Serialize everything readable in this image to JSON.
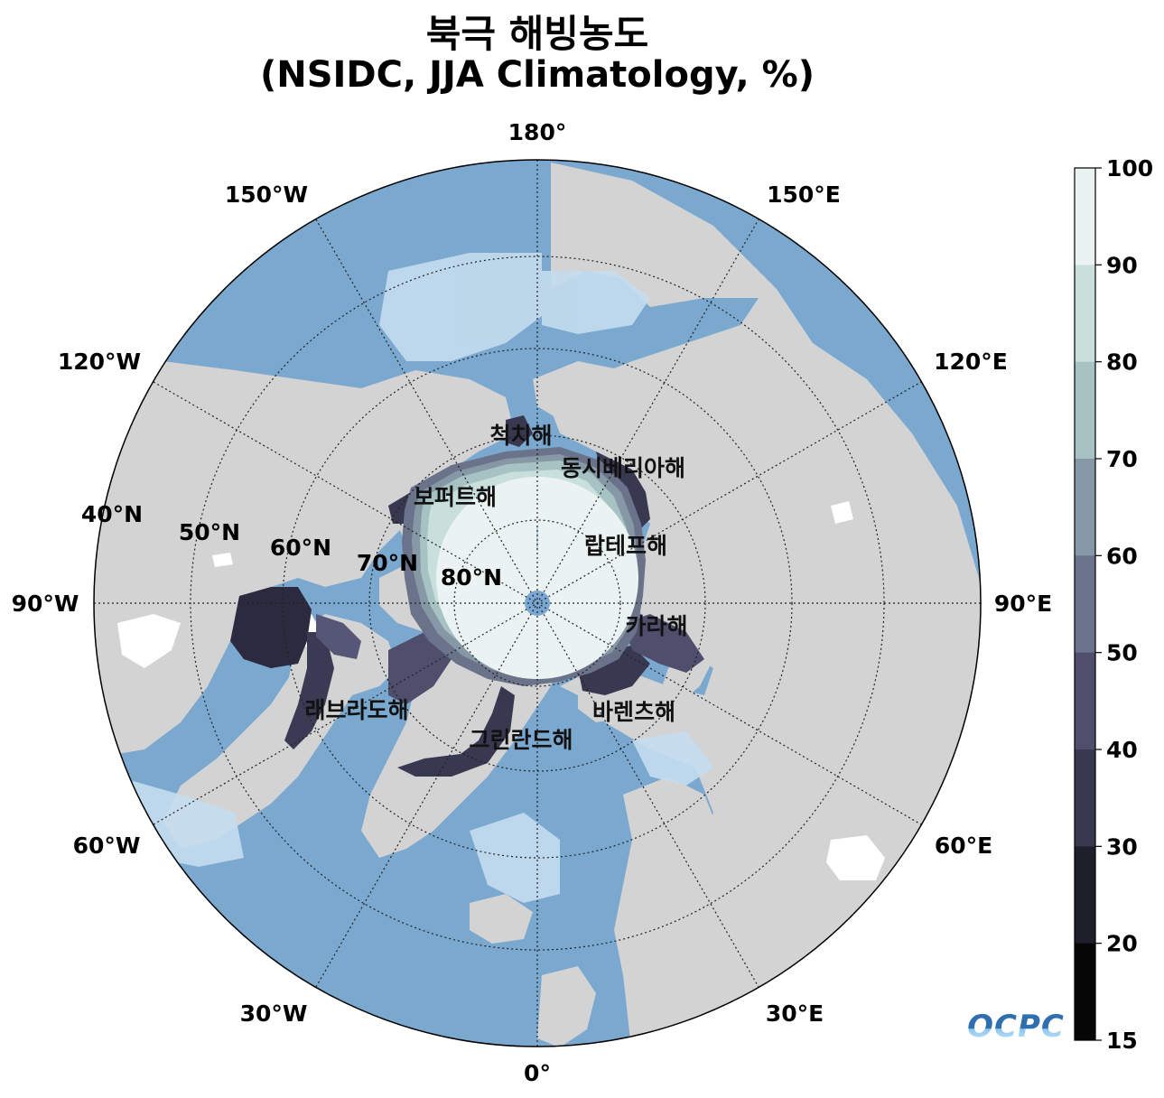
{
  "title": {
    "line1": "북극 해빙농도",
    "line2": "(NSIDC, JJA Climatology, %)"
  },
  "map": {
    "projection": "north-polar-stereographic",
    "longitude_labels": {
      "lon_180": "180°",
      "lon_150e": "150°E",
      "lon_120e": "120°E",
      "lon_90e": "90°E",
      "lon_60e": "60°E",
      "lon_30e": "30°E",
      "lon_0": "0°",
      "lon_30w": "30°W",
      "lon_60w": "60°W",
      "lon_90w": "90°W",
      "lon_120w": "120°W",
      "lon_150w": "150°W"
    },
    "latitude_labels": {
      "lat_40": "40°N",
      "lat_50": "50°N",
      "lat_60": "60°N",
      "lat_70": "70°N",
      "lat_80": "80°N"
    },
    "sea_labels": {
      "chukchi": "척치해",
      "east_siberian": "동시베리아해",
      "beaufort": "보퍼트해",
      "laptev": "랍테프해",
      "kara": "카라해",
      "barents": "바렌츠해",
      "labrador": "래브라도해",
      "greenland": "그린란드해"
    },
    "colors": {
      "ocean": "#7aa8cf",
      "shelf": "#c4dcee",
      "land": "#d3d3d3",
      "pole": "#79a7d3"
    }
  },
  "colorbar": {
    "ticks": [
      "100",
      "90",
      "80",
      "70",
      "60",
      "50",
      "40",
      "30",
      "20",
      "15"
    ],
    "colors": [
      "#eaf3f1",
      "#c8dfdc",
      "#a6c2c2",
      "#8698a5",
      "#6a7389",
      "#4f4f6d",
      "#393851",
      "#1f1f2c",
      "#060606"
    ]
  },
  "logo": {
    "text": "OCPC"
  }
}
